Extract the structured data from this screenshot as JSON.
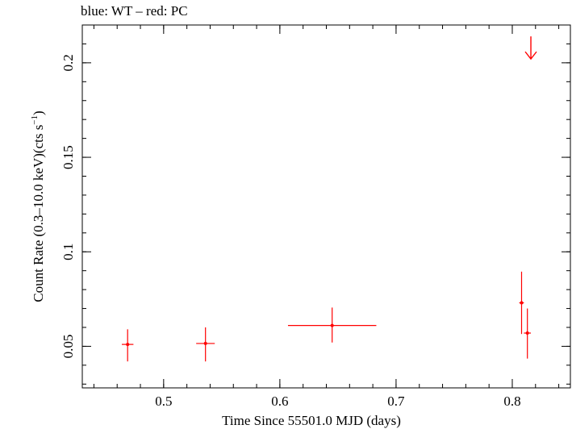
{
  "chart_data": {
    "type": "scatter",
    "title": "blue: WT – red: PC",
    "xlabel": "Time Since 55501.0 MJD (days)",
    "ylabel_main": "Count Rate (0.3–10.0 keV)(cts s",
    "ylabel_sup": "−1",
    "ylabel_tail": ")",
    "xlim": [
      0.43,
      0.85
    ],
    "ylim": [
      0.028,
      0.22
    ],
    "x_major_ticks": [
      0.5,
      0.6,
      0.7,
      0.8
    ],
    "x_tick_labels": [
      "0.5",
      "0.6",
      "0.7",
      "0.8"
    ],
    "x_minor_step": 0.02,
    "y_major_ticks": [
      0.05,
      0.1,
      0.15,
      0.2
    ],
    "y_tick_labels": [
      "0.05",
      "0.1",
      "0.15",
      "0.2"
    ],
    "y_minor_step": 0.01,
    "grid": false,
    "series": [
      {
        "name": "PC",
        "color": "#ff0000",
        "points": [
          {
            "x": 0.469,
            "xerr": 0.005,
            "y": 0.051,
            "yerr_lo": 0.009,
            "yerr_hi": 0.008
          },
          {
            "x": 0.536,
            "xerr": 0.008,
            "y": 0.0515,
            "yerr_lo": 0.0095,
            "yerr_hi": 0.0085
          },
          {
            "x": 0.645,
            "xerr": 0.038,
            "y": 0.061,
            "yerr_lo": 0.009,
            "yerr_hi": 0.0095
          },
          {
            "x": 0.808,
            "xerr": 0.002,
            "y": 0.073,
            "yerr_lo": 0.0165,
            "yerr_hi": 0.0165
          },
          {
            "x": 0.813,
            "xerr": 0.003,
            "y": 0.057,
            "yerr_lo": 0.0135,
            "yerr_hi": 0.013
          }
        ],
        "upper_limits": [
          {
            "x": 0.816,
            "y": 0.208
          }
        ]
      }
    ]
  }
}
